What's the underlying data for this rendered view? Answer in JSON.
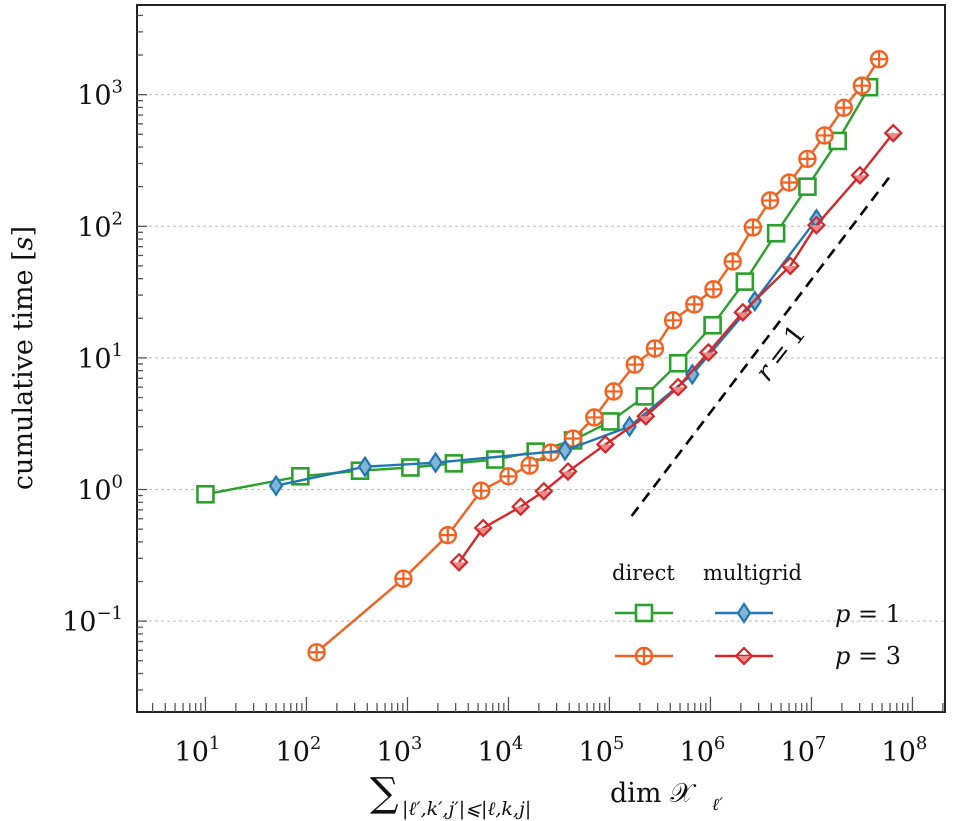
{
  "chart_data": {
    "type": "line",
    "title": "",
    "xscale": "log",
    "yscale": "log",
    "xlim": [
      2.1,
      210000000.0
    ],
    "ylim": [
      0.0204,
      4800
    ],
    "grid": "horizontal dashed at major y ticks",
    "ylabel": {
      "text": "cumulative time ",
      "bracket_open": "[",
      "unit": "s",
      "bracket_close": "]"
    },
    "xlabel": {
      "sum": "∑",
      "sub": "|ℓ′,k′,j′|⩽|ℓ,k,j|",
      "main": "dim 𝒳",
      "main_sub": "ℓ′"
    },
    "x_ticks": [
      {
        "base": "10",
        "exp": "1",
        "value": 10.0
      },
      {
        "base": "10",
        "exp": "2",
        "value": 100.0
      },
      {
        "base": "10",
        "exp": "3",
        "value": 1000.0
      },
      {
        "base": "10",
        "exp": "4",
        "value": 10000.0
      },
      {
        "base": "10",
        "exp": "5",
        "value": 100000.0
      },
      {
        "base": "10",
        "exp": "6",
        "value": 1000000.0
      },
      {
        "base": "10",
        "exp": "7",
        "value": 10000000.0
      },
      {
        "base": "10",
        "exp": "8",
        "value": 100000000.0
      }
    ],
    "y_ticks": [
      {
        "base": "10",
        "exp": "−1",
        "value": 0.1
      },
      {
        "base": "10",
        "exp": "0",
        "value": 1
      },
      {
        "base": "10",
        "exp": "1",
        "value": 10
      },
      {
        "base": "10",
        "exp": "2",
        "value": 100
      },
      {
        "base": "10",
        "exp": "3",
        "value": 1000
      }
    ],
    "series": [
      {
        "name": "direct p = 1",
        "color": "#2ca02c",
        "marker": "square",
        "x": [
          10,
          87,
          339,
          1070,
          2880,
          7410,
          18600,
          43600,
          102000,
          224000,
          479000,
          1050000,
          2190000,
          4470000,
          9120000,
          18200000,
          37200000
        ],
        "y": [
          0.92,
          1.26,
          1.39,
          1.47,
          1.58,
          1.69,
          1.94,
          2.36,
          3.29,
          5.1,
          9.1,
          17.7,
          38,
          88.5,
          200,
          445,
          1140
        ]
      },
      {
        "name": "direct p = 3",
        "color": "#f4601f",
        "marker": "circle-plus",
        "x": [
          126,
          912,
          2510,
          5370,
          10000,
          16200,
          26300,
          43600,
          70800,
          110000,
          178000,
          282000,
          427000,
          692000,
          1070000,
          1660000,
          2630000,
          3890000,
          6030000,
          9120000,
          13500000,
          20900000,
          31600000,
          46800000
        ],
        "y": [
          0.058,
          0.21,
          0.45,
          0.98,
          1.26,
          1.52,
          1.91,
          2.44,
          3.53,
          5.56,
          8.9,
          11.8,
          19.3,
          25.5,
          33.2,
          54,
          98,
          157,
          215,
          325,
          490,
          795,
          1170,
          1860
        ]
      },
      {
        "name": "multigrid p = 1",
        "color": "#1f77b4",
        "marker": "diamond-filled",
        "x": [
          50,
          380,
          1900,
          36300,
          158000,
          661000,
          2750000,
          11200000
        ],
        "y": [
          1.07,
          1.49,
          1.6,
          1.98,
          3.01,
          7.5,
          27,
          113
        ]
      },
      {
        "name": "multigrid p = 3",
        "color": "#d62728",
        "marker": "diamond-half",
        "x": [
          3240,
          5620,
          13200,
          22400,
          38900,
          91200,
          229000,
          479000,
          955000,
          2090000,
          6170000,
          11200000,
          30200000,
          64600000
        ],
        "y": [
          0.28,
          0.51,
          0.74,
          0.97,
          1.37,
          2.2,
          3.6,
          6.0,
          11.0,
          22.2,
          50,
          102,
          244,
          510
        ]
      }
    ],
    "reference_line": {
      "label_lhs": "r",
      "label_eq": "=",
      "label_rhs": "1",
      "x": [
        166000,
        60300000
      ],
      "y": [
        0.63,
        241
      ],
      "style": "dashed",
      "color": "#000000"
    },
    "legend": {
      "placement": "lower-right",
      "col_headers": [
        "direct",
        "multigrid"
      ],
      "row_labels": [
        {
          "var": "p",
          "eq": " = ",
          "val": "1"
        },
        {
          "var": "p",
          "eq": " = ",
          "val": "3"
        }
      ]
    }
  }
}
